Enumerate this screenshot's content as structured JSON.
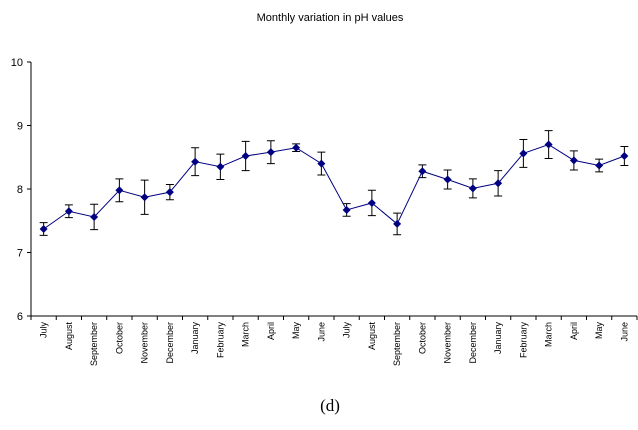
{
  "chart_data": {
    "type": "line",
    "title": "Monthly variation in pH values",
    "caption": "(d)",
    "categories": [
      "July",
      "August",
      "September",
      "October",
      "November",
      "December",
      "January",
      "February",
      "March",
      "April",
      "May",
      "June",
      "July",
      "August",
      "September",
      "October",
      "November",
      "December",
      "January",
      "February",
      "March",
      "April",
      "May",
      "June"
    ],
    "series": [
      {
        "color": "#000080",
        "values": [
          7.37,
          7.65,
          7.56,
          7.98,
          7.87,
          7.95,
          8.43,
          8.35,
          8.52,
          8.58,
          8.65,
          8.4,
          7.67,
          7.78,
          7.45,
          8.28,
          8.15,
          8.01,
          8.09,
          8.56,
          8.7,
          8.45,
          8.37,
          8.52
        ],
        "errors": [
          0.1,
          0.1,
          0.2,
          0.18,
          0.27,
          0.12,
          0.22,
          0.2,
          0.23,
          0.18,
          0.06,
          0.18,
          0.1,
          0.2,
          0.17,
          0.1,
          0.15,
          0.15,
          0.2,
          0.22,
          0.22,
          0.15,
          0.1,
          0.15
        ]
      }
    ],
    "error_color": "#000000",
    "ylim": [
      6,
      10
    ],
    "yticks": [
      6,
      7,
      8,
      9,
      10
    ],
    "grid": false
  }
}
